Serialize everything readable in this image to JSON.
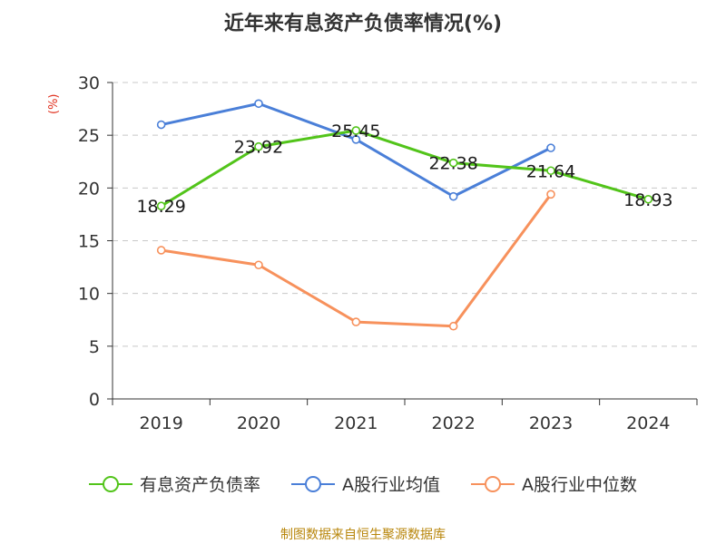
{
  "title": "近年来有息资产负债率情况(%)",
  "y_unit": "(%)",
  "source": "制图数据来自恒生聚源数据库",
  "colors": {
    "series_0": "#52c41a",
    "series_1": "#4a7fd8",
    "series_2": "#f7915c",
    "unit": "#e0301e",
    "source": "#b8860b"
  },
  "chart_data": {
    "type": "line",
    "title": "近年来有息资产负债率情况(%)",
    "ylabel": "(%)",
    "xlabel": "",
    "categories": [
      "2019",
      "2020",
      "2021",
      "2022",
      "2023",
      "2024"
    ],
    "ylim": [
      0,
      30
    ],
    "yticks": [
      0,
      5,
      10,
      15,
      20,
      25,
      30
    ],
    "grid": true,
    "legend_position": "bottom",
    "series": [
      {
        "name": "有息资产负债率",
        "color": "#52c41a",
        "values": [
          18.29,
          23.92,
          25.45,
          22.38,
          21.64,
          18.93
        ],
        "labels": [
          "18.29",
          "23.92",
          "25.45",
          "22.38",
          "21.64",
          "18.93"
        ]
      },
      {
        "name": "A股行业均值",
        "color": "#4a7fd8",
        "values": [
          26.0,
          28.0,
          24.6,
          19.2,
          23.8,
          null
        ]
      },
      {
        "name": "A股行业中位数",
        "color": "#f7915c",
        "values": [
          14.1,
          12.7,
          7.3,
          6.9,
          19.4,
          null
        ]
      }
    ]
  }
}
